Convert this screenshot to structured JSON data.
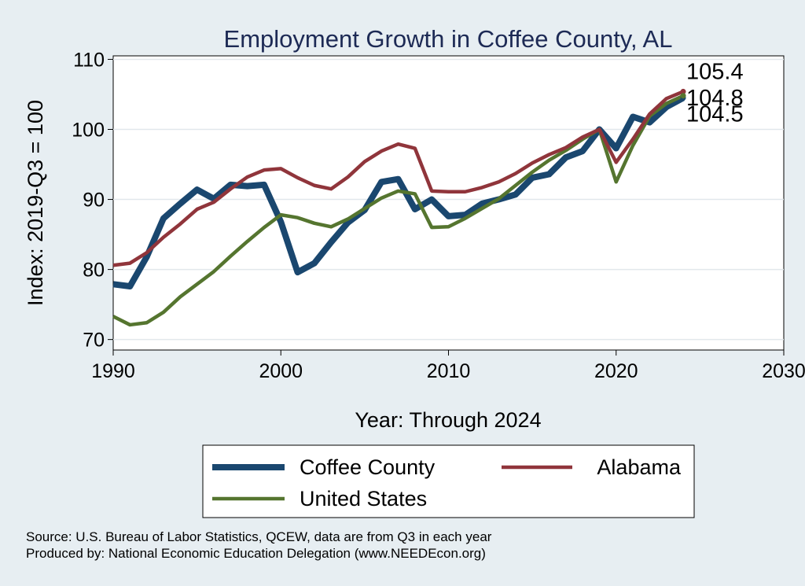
{
  "chart_data": {
    "type": "line",
    "title": "Employment Growth in Coffee County, AL",
    "xlabel": "Year: Through 2024",
    "ylabel": "Index: 2019-Q3 = 100",
    "xlim": [
      1990,
      2030
    ],
    "ylim": [
      68.5,
      110.5
    ],
    "xticks": [
      1990,
      2000,
      2010,
      2020,
      2030
    ],
    "yticks": [
      70,
      80,
      90,
      100,
      110
    ],
    "grid": true,
    "legend_position": "bottom",
    "x": [
      1990,
      1991,
      1992,
      1993,
      1994,
      1995,
      1996,
      1997,
      1998,
      1999,
      2000,
      2001,
      2002,
      2003,
      2004,
      2005,
      2006,
      2007,
      2008,
      2009,
      2010,
      2011,
      2012,
      2013,
      2014,
      2015,
      2016,
      2017,
      2018,
      2019,
      2020,
      2021,
      2022,
      2023,
      2024
    ],
    "series": [
      {
        "name": "Coffee  County",
        "color": "#1a476f",
        "values": [
          77.9,
          77.6,
          81.8,
          87.3,
          89.4,
          91.4,
          90.1,
          92.1,
          91.9,
          92.1,
          86.8,
          79.6,
          80.9,
          83.9,
          86.7,
          88.5,
          92.5,
          92.9,
          88.6,
          90.0,
          87.6,
          87.8,
          89.4,
          90.0,
          90.7,
          93.1,
          93.6,
          96.0,
          96.9,
          100.0,
          97.3,
          101.8,
          101.0,
          103.2,
          104.5
        ],
        "end_label": "104.5"
      },
      {
        "name": "Alabama",
        "color": "#90353b",
        "values": [
          80.6,
          80.9,
          82.4,
          84.6,
          86.5,
          88.6,
          89.6,
          91.5,
          93.2,
          94.2,
          94.4,
          93.1,
          92.0,
          91.5,
          93.2,
          95.4,
          96.9,
          97.9,
          97.3,
          91.2,
          91.1,
          91.1,
          91.7,
          92.5,
          93.7,
          95.2,
          96.4,
          97.4,
          98.9,
          100.0,
          95.3,
          98.6,
          102.2,
          104.4,
          105.4
        ],
        "end_label": "105.4"
      },
      {
        "name": "United States",
        "color": "#55752f",
        "values": [
          73.3,
          72.1,
          72.4,
          73.9,
          76.1,
          77.9,
          79.7,
          81.9,
          84.0,
          86.0,
          87.8,
          87.4,
          86.6,
          86.1,
          87.2,
          88.7,
          90.2,
          91.2,
          90.8,
          86.0,
          86.1,
          87.3,
          88.7,
          90.1,
          92.0,
          93.9,
          95.6,
          97.0,
          98.6,
          100.0,
          92.5,
          97.7,
          101.9,
          103.7,
          104.8
        ],
        "end_label": "104.8"
      }
    ],
    "source_lines": [
      "Source: U.S. Bureau of Labor Statistics, QCEW, data are from Q3 in each year",
      "Produced by: National Economic Education Delegation (www.NEEDEcon.org)"
    ]
  }
}
